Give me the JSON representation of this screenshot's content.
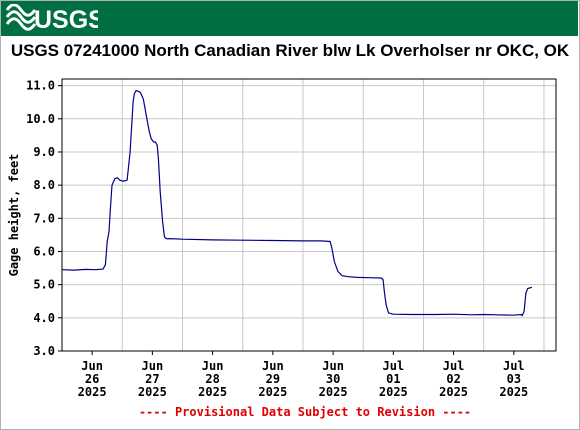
{
  "header": {
    "logo_text": "USGS",
    "banner_color": "#006f41"
  },
  "chart_data": {
    "type": "line",
    "title": "USGS 07241000 North Canadian River blw Lk Overholser nr OKC, OK",
    "ylabel": "Gage height, feet",
    "xlabel": "",
    "ylim": [
      3.0,
      11.2
    ],
    "xlim": [
      0,
      8.2
    ],
    "grid": true,
    "line_color": "#00008b",
    "yticks": [
      {
        "value": 3.0,
        "label": "3.0"
      },
      {
        "value": 4.0,
        "label": "4.0"
      },
      {
        "value": 5.0,
        "label": "5.0"
      },
      {
        "value": 6.0,
        "label": "6.0"
      },
      {
        "value": 7.0,
        "label": "7.0"
      },
      {
        "value": 8.0,
        "label": "8.0"
      },
      {
        "value": 9.0,
        "label": "9.0"
      },
      {
        "value": 10.0,
        "label": "10.0"
      },
      {
        "value": 11.0,
        "label": "11.0"
      }
    ],
    "xticks": [
      {
        "value": 0.5,
        "line1": "Jun",
        "line2": "26",
        "line3": "2025"
      },
      {
        "value": 1.5,
        "line1": "Jun",
        "line2": "27",
        "line3": "2025"
      },
      {
        "value": 2.5,
        "line1": "Jun",
        "line2": "28",
        "line3": "2025"
      },
      {
        "value": 3.5,
        "line1": "Jun",
        "line2": "29",
        "line3": "2025"
      },
      {
        "value": 4.5,
        "line1": "Jun",
        "line2": "30",
        "line3": "2025"
      },
      {
        "value": 5.5,
        "line1": "Jul",
        "line2": "01",
        "line3": "2025"
      },
      {
        "value": 6.5,
        "line1": "Jul",
        "line2": "02",
        "line3": "2025"
      },
      {
        "value": 7.5,
        "line1": "Jul",
        "line2": "03",
        "line3": "2025"
      }
    ],
    "series": [
      {
        "x": [
          0.0,
          0.2,
          0.4,
          0.55,
          0.68,
          0.72,
          0.75,
          0.78,
          0.8,
          0.83,
          0.88,
          0.92,
          0.96,
          1.02,
          1.08,
          1.13,
          1.18,
          1.2,
          1.23,
          1.27,
          1.3,
          1.35,
          1.42,
          1.45,
          1.48,
          1.5,
          1.52,
          1.55,
          1.58,
          1.6,
          1.63,
          1.67,
          1.7,
          1.72,
          1.75,
          1.8,
          2.0,
          2.5,
          3.0,
          3.5,
          4.0,
          4.3,
          4.45,
          4.48,
          4.52,
          4.58,
          4.65,
          4.75,
          4.9,
          5.1,
          5.3,
          5.33,
          5.35,
          5.38,
          5.42,
          5.5,
          5.8,
          6.2,
          6.5,
          6.8,
          7.0,
          7.2,
          7.5,
          7.62,
          7.64,
          7.67,
          7.7,
          7.73,
          7.76,
          7.8
        ],
        "y": [
          5.45,
          5.44,
          5.46,
          5.45,
          5.47,
          5.6,
          6.3,
          6.6,
          7.2,
          8.0,
          8.2,
          8.22,
          8.15,
          8.12,
          8.15,
          9.0,
          10.5,
          10.75,
          10.85,
          10.83,
          10.8,
          10.6,
          9.9,
          9.6,
          9.4,
          9.35,
          9.3,
          9.3,
          9.2,
          8.8,
          7.8,
          6.9,
          6.45,
          6.4,
          6.38,
          6.39,
          6.37,
          6.35,
          6.34,
          6.33,
          6.32,
          6.32,
          6.3,
          6.1,
          5.7,
          5.4,
          5.27,
          5.24,
          5.22,
          5.21,
          5.2,
          5.15,
          4.8,
          4.4,
          4.15,
          4.11,
          4.1,
          4.1,
          4.11,
          4.09,
          4.1,
          4.09,
          4.08,
          4.1,
          4.07,
          4.2,
          4.75,
          4.88,
          4.9,
          4.92
        ]
      }
    ]
  },
  "footer": {
    "notice": "---- Provisional Data Subject to Revision ----",
    "notice_color": "#e00000"
  }
}
